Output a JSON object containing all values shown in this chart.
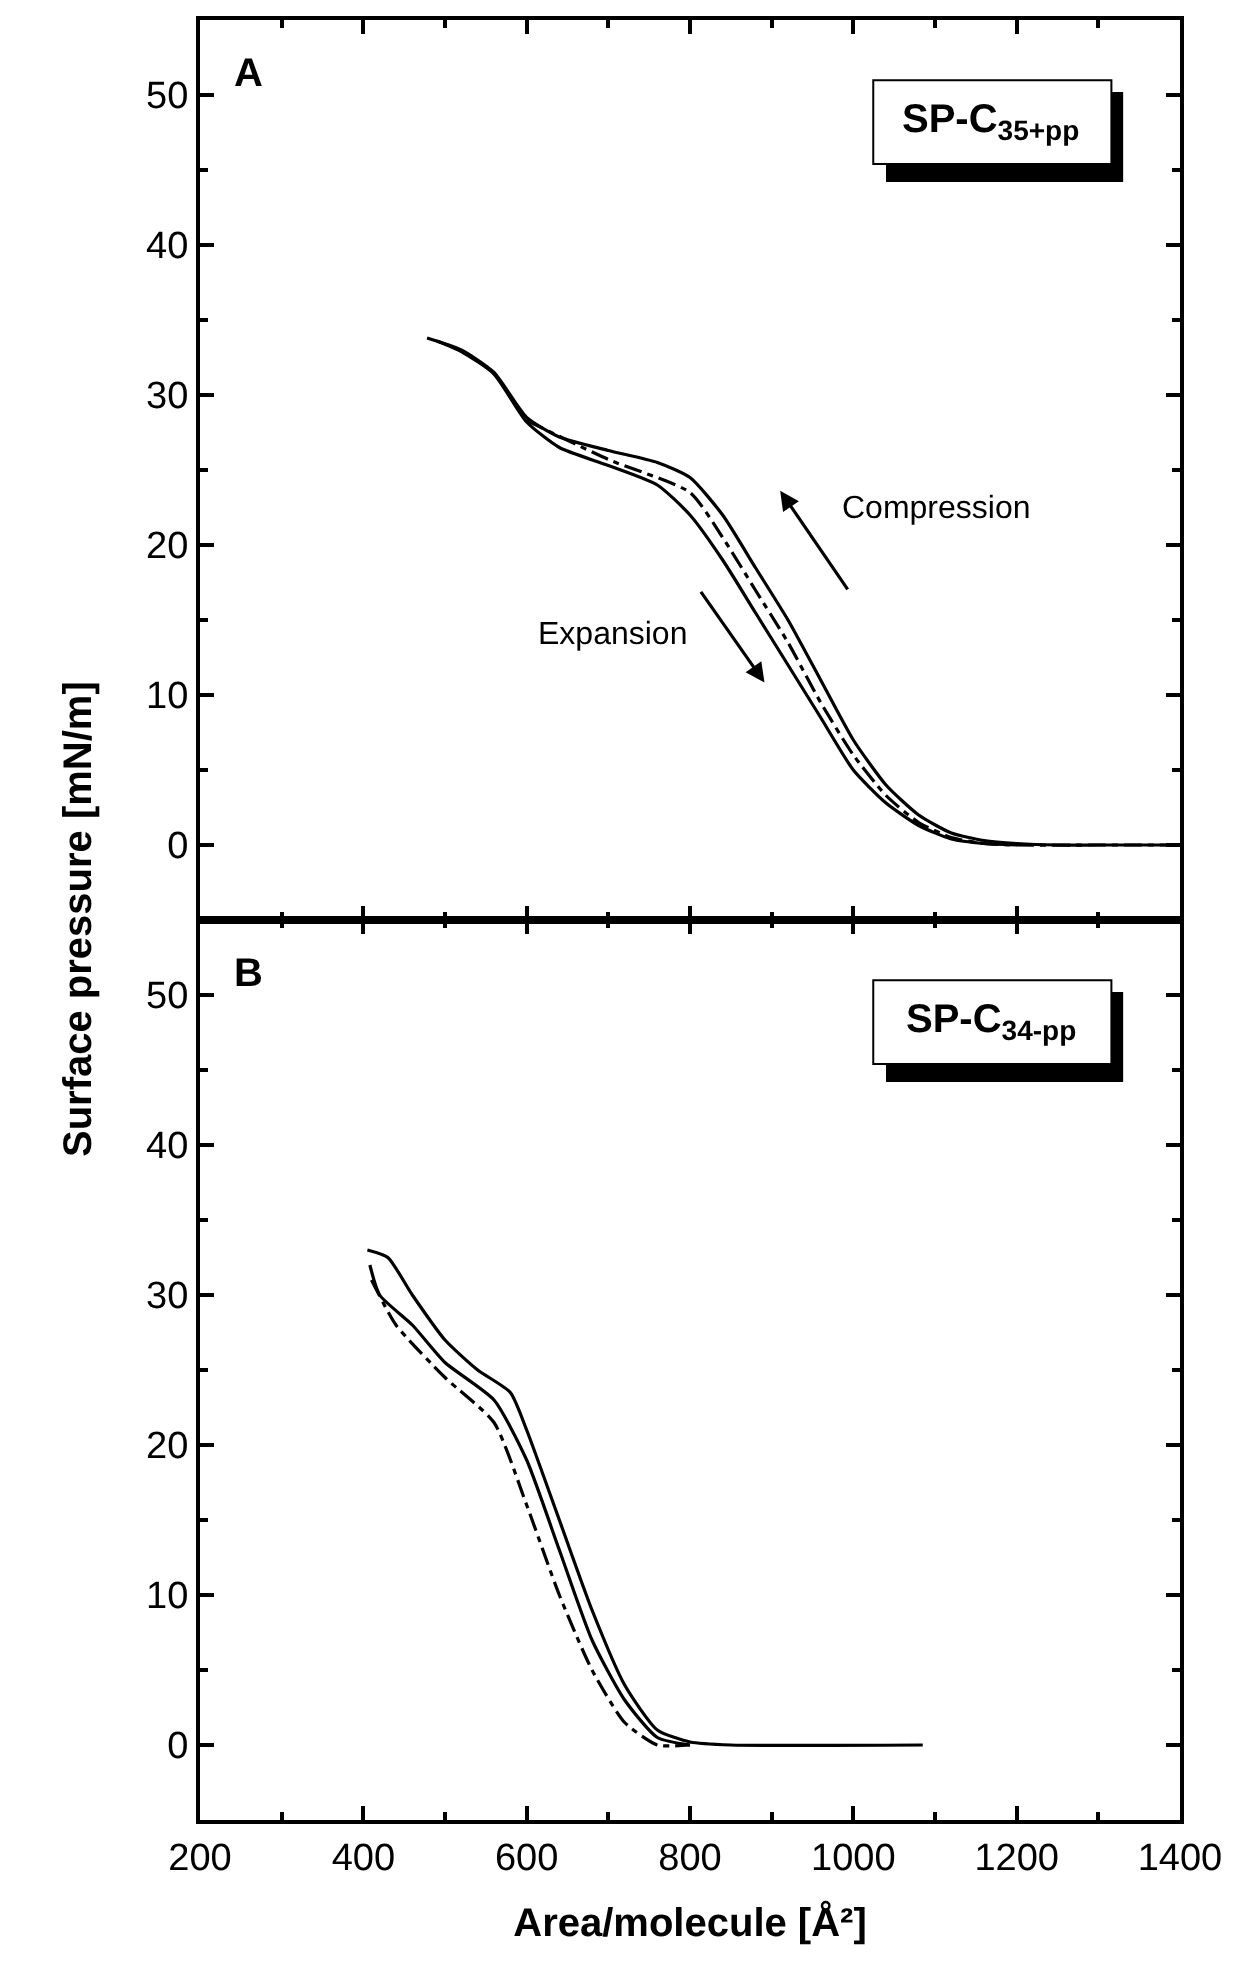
{
  "chart_data": [
    {
      "type": "line",
      "title": "A",
      "ylabel": "Surface pressure [mN/m]",
      "annotations": [
        "SP-C$_{35+pp}$",
        "Compression",
        "Expansion"
      ],
      "xlim": [
        200,
        1400
      ],
      "xticks": [
        {
          "value": 200,
          "label": null
        },
        {
          "value": 400,
          "label": null
        },
        {
          "value": 600,
          "label": null
        },
        {
          "value": 800,
          "label": null
        },
        {
          "value": 1000,
          "label": null
        },
        {
          "value": 1200,
          "label": null
        },
        {
          "value": 1400,
          "label": null
        }
      ],
      "ylim": [
        -5,
        55
      ],
      "yticks": [
        0,
        10,
        20,
        30,
        40,
        50
      ],
      "tick_labels": "y",
      "series": [
        {
          "color": "#000000",
          "line_style": "solid",
          "x": [
            478,
            520,
            560,
            600,
            640,
            700,
            760,
            800,
            840,
            880,
            920,
            960,
            1000,
            1040,
            1080,
            1120,
            1160,
            1200,
            1250,
            1300,
            1400
          ],
          "values": [
            33.8,
            33,
            31.5,
            28.5,
            27.2,
            26.3,
            25.5,
            24.5,
            22,
            18.5,
            15,
            11,
            7,
            4,
            2,
            0.8,
            0.3,
            0.1,
            0,
            0,
            0
          ]
        },
        {
          "color": "#000000",
          "line_style": "solid",
          "x": [
            490,
            520,
            560,
            600,
            640,
            700,
            760,
            800,
            840,
            880,
            920,
            960,
            1000,
            1040,
            1080,
            1120,
            1160,
            1200
          ],
          "values": [
            33.6,
            32.9,
            31.4,
            28.2,
            26.5,
            25.3,
            24,
            22,
            19,
            15.5,
            12,
            8.5,
            5,
            2.8,
            1.3,
            0.4,
            0.1,
            0
          ]
        },
        {
          "color": "#000000",
          "line_style": "dashed",
          "x": [
            600,
            700,
            800,
            840,
            880,
            920,
            960,
            1000,
            1040,
            1080,
            1120,
            1160,
            1200,
            1300,
            1400
          ],
          "values": [
            28.3,
            25.7,
            23.5,
            20.5,
            17,
            13.5,
            9.5,
            6,
            3.3,
            1.5,
            0.5,
            0.1,
            0,
            0,
            0
          ]
        }
      ]
    },
    {
      "type": "line",
      "title": "B",
      "xlabel": "Area/molecule [Å²]",
      "annotations": [
        "SP-C$_{34-pp}$"
      ],
      "xlim": [
        200,
        1400
      ],
      "xticks": [
        200,
        400,
        600,
        800,
        1000,
        1200,
        1400
      ],
      "ylim": [
        -5,
        55
      ],
      "yticks": [
        0,
        10,
        20,
        30,
        40,
        50
      ],
      "series": [
        {
          "color": "#000000",
          "line_style": "solid",
          "x": [
            405,
            430,
            460,
            500,
            540,
            580,
            600,
            640,
            680,
            720,
            760,
            800,
            850,
            1085
          ],
          "values": [
            33,
            32.5,
            30,
            27,
            25,
            23.5,
            21,
            15,
            9,
            4,
            1,
            0.2,
            0,
            0
          ]
        },
        {
          "color": "#000000",
          "line_style": "solid",
          "x": [
            408,
            420,
            460,
            500,
            560,
            600,
            640,
            680,
            720,
            760,
            800
          ],
          "values": [
            32,
            30,
            28,
            25.5,
            23,
            19,
            13,
            7,
            3,
            0.5,
            0
          ]
        },
        {
          "color": "#000000",
          "line_style": "dashed",
          "x": [
            410,
            440,
            500,
            560,
            600,
            640,
            680,
            720,
            760,
            800
          ],
          "values": [
            31,
            28,
            24.5,
            21.5,
            16,
            10,
            5,
            1.5,
            0,
            0
          ]
        }
      ]
    }
  ]
}
